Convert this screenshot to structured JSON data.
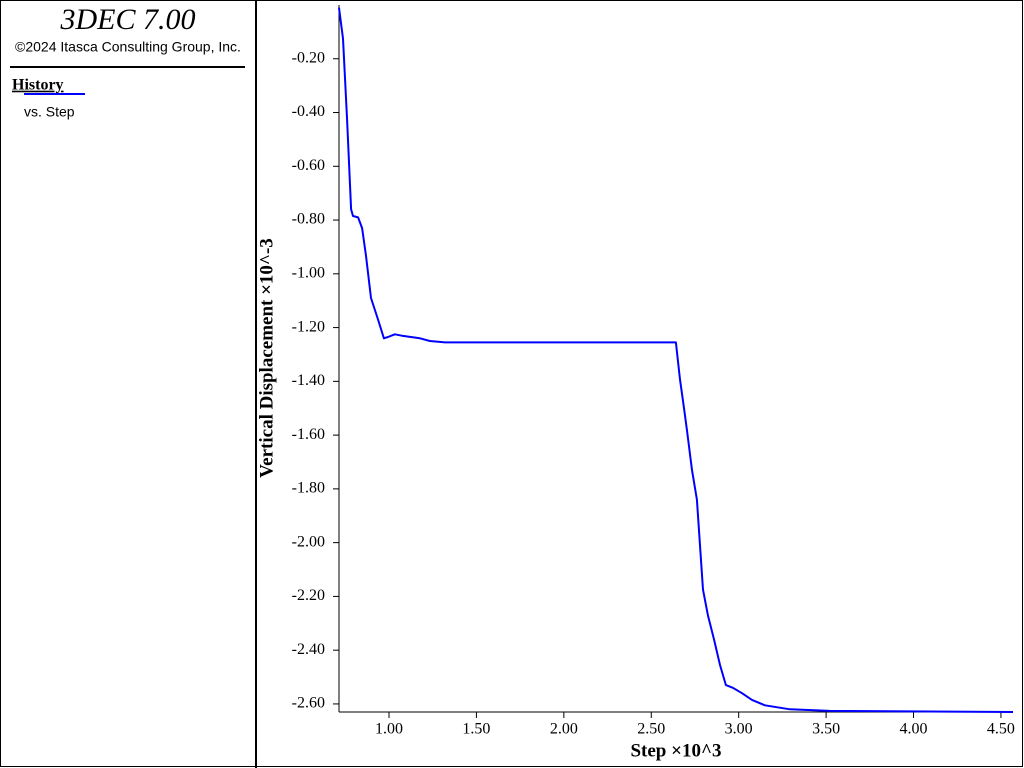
{
  "header": {
    "title": "3DEC 7.00",
    "copyright": "©2024 Itasca Consulting Group, Inc."
  },
  "chart_data": {
    "type": "line",
    "xlabel": "Step ×10^3",
    "ylabel": "Vertical Displacement ×10^-3",
    "legend_note": "vs. Step",
    "x": [
      0.714,
      0.737,
      0.76,
      0.783,
      0.794,
      0.823,
      0.846,
      0.868,
      0.897,
      0.937,
      0.971,
      0.994,
      1.034,
      1.074,
      1.177,
      1.234,
      1.32,
      2.641,
      2.664,
      2.687,
      2.704,
      2.733,
      2.761,
      2.796,
      2.824,
      2.859,
      2.893,
      2.927,
      2.967,
      3.019,
      3.076,
      3.15,
      3.293,
      3.522,
      4.569
    ],
    "series": [
      {
        "name": "History",
        "color": "#0000ff",
        "values": [
          -0.01,
          -0.125,
          -0.42,
          -0.76,
          -0.785,
          -0.79,
          -0.83,
          -0.93,
          -1.09,
          -1.17,
          -1.24,
          -1.235,
          -1.225,
          -1.23,
          -1.24,
          -1.25,
          -1.255,
          -1.255,
          -1.39,
          -1.5,
          -1.58,
          -1.73,
          -1.84,
          -2.175,
          -2.27,
          -2.36,
          -2.455,
          -2.53,
          -2.54,
          -2.56,
          -2.585,
          -2.605,
          -2.62,
          -2.626,
          -2.63
        ]
      }
    ],
    "xlim": [
      0.714,
      4.569
    ],
    "ylim": [
      -2.63,
      0.0
    ],
    "xticks": [
      {
        "value": 1.0,
        "label": "1.00"
      },
      {
        "value": 1.5,
        "label": "1.50"
      },
      {
        "value": 2.0,
        "label": "2.00"
      },
      {
        "value": 2.5,
        "label": "2.50"
      },
      {
        "value": 3.0,
        "label": "3.00"
      },
      {
        "value": 3.5,
        "label": "3.50"
      },
      {
        "value": 4.0,
        "label": "4.00"
      },
      {
        "value": 4.5,
        "label": "4.50"
      }
    ],
    "yticks": [
      {
        "value": -0.2,
        "label": "-0.20"
      },
      {
        "value": -0.4,
        "label": "-0.40"
      },
      {
        "value": -0.6,
        "label": "-0.60"
      },
      {
        "value": -0.8,
        "label": "-0.80"
      },
      {
        "value": -1.0,
        "label": "-1.00"
      },
      {
        "value": -1.2,
        "label": "-1.20"
      },
      {
        "value": -1.4,
        "label": "-1.40"
      },
      {
        "value": -1.6,
        "label": "-1.60"
      },
      {
        "value": -1.8,
        "label": "-1.80"
      },
      {
        "value": -2.0,
        "label": "-2.00"
      },
      {
        "value": -2.2,
        "label": "-2.20"
      },
      {
        "value": -2.4,
        "label": "-2.40"
      },
      {
        "value": -2.6,
        "label": "-2.60"
      }
    ],
    "grid": false
  }
}
